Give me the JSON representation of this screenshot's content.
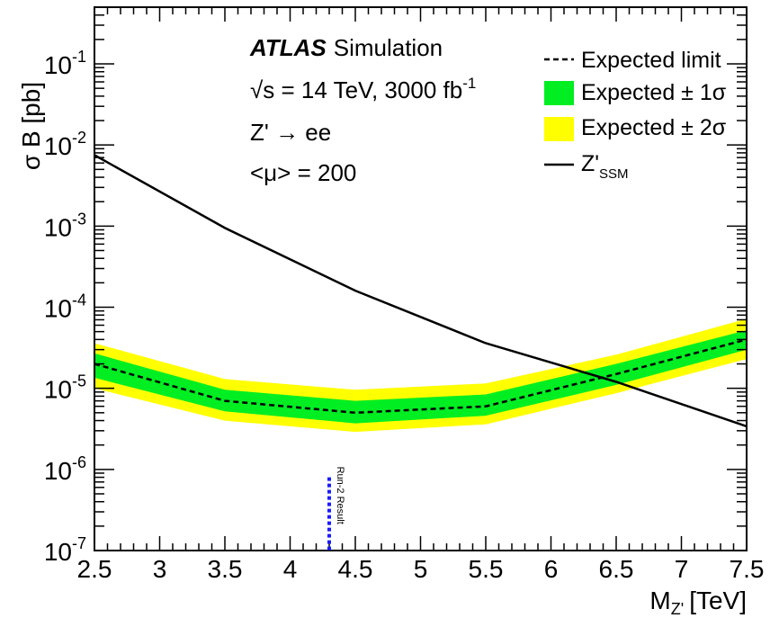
{
  "chart_data": {
    "type": "line",
    "x_label": "M",
    "x_label_sub": "Z'",
    "x_label_unit": "[TeV]",
    "y_label": "σ B [pb]",
    "xlim": [
      2.5,
      7.5
    ],
    "ylim": [
      1e-07,
      0.5
    ],
    "y_scale": "log",
    "x_ticks": [
      "2.5",
      "3",
      "3.5",
      "4",
      "4.5",
      "5",
      "5.5",
      "6",
      "6.5",
      "7",
      "7.5"
    ],
    "y_tick_values": [
      1e-07,
      1e-06,
      1e-05,
      0.0001,
      0.001,
      0.01,
      0.1
    ],
    "y_tick_base": "10",
    "y_tick_exponents": [
      "-7",
      "-6",
      "-5",
      "-4",
      "-3",
      "-2",
      "-1"
    ],
    "annotations": {
      "atlas": "ATLAS",
      "simulation": "Simulation",
      "energy": "√s = 14 TeV, 3000 fb",
      "energy_sup": "-1",
      "process": "Z' → ee",
      "pileup": "<μ> = 200",
      "run2_label": "Run-2 Result"
    },
    "legend": {
      "position": "top-right",
      "expected": "Expected limit",
      "band1": "Expected ± 1σ",
      "band2": "Expected ± 2σ",
      "zssm": "Z'",
      "zssm_sub": "SSM"
    },
    "colors": {
      "band1": "#00ee22",
      "band2": "#ffff00",
      "expected": "#000000",
      "zssm": "#000000",
      "run2": "#1a1aff"
    },
    "run2_mass": 4.3,
    "run2_top": 8e-07,
    "expected": {
      "x": [
        2.5,
        3.5,
        4.5,
        5.5,
        6.5,
        7.5
      ],
      "y": [
        2e-05,
        7e-06,
        5e-06,
        6e-06,
        1.5e-05,
        4e-05
      ]
    },
    "band_1sigma": {
      "x": [
        2.5,
        3.5,
        4.5,
        5.5,
        6.5,
        7.5
      ],
      "low": [
        1.35e-05,
        5.2e-06,
        3.7e-06,
        4.6e-06,
        1.1e-05,
        3e-05
      ],
      "high": [
        2.7e-05,
        9.6e-06,
        7e-06,
        8.4e-06,
        2e-05,
        5.2e-05
      ]
    },
    "band_2sigma": {
      "x": [
        2.5,
        3.5,
        4.5,
        5.5,
        6.5,
        7.5
      ],
      "low": [
        1e-05,
        4e-06,
        2.9e-06,
        3.6e-06,
        8.7e-06,
        2.3e-05
      ],
      "high": [
        3.6e-05,
        1.3e-05,
        9.6e-06,
        1.15e-05,
        2.6e-05,
        7.2e-05
      ]
    },
    "zssm": {
      "x": [
        2.5,
        3.5,
        4.5,
        5.5,
        6.5,
        7.5
      ],
      "y": [
        0.0075,
        0.00095,
        0.00016,
        3.6e-05,
        1.2e-05,
        3.4e-06
      ]
    }
  }
}
